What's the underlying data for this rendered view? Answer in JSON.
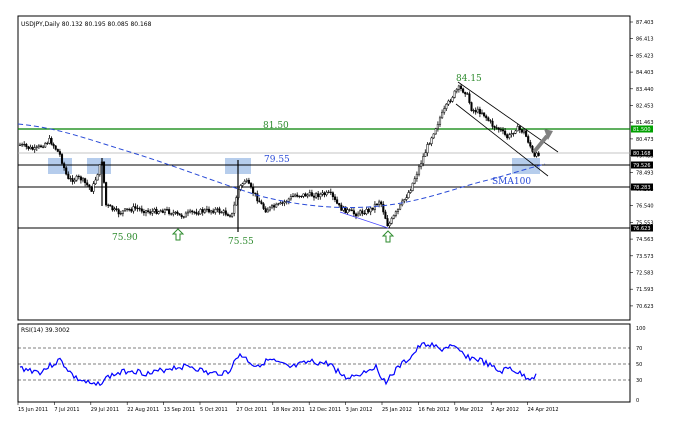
{
  "main_panel": {
    "header": "USDJPY,Daily  80.132 80.195 80.085 80.168",
    "price_ticks": [
      "87.403",
      "86.413",
      "85.423",
      "84.403",
      "83.440",
      "82.453",
      "81.463",
      "80.473",
      "79.483",
      "78.493",
      "77.503",
      "76.540",
      "75.553",
      "74.563",
      "73.573",
      "72.583",
      "71.593",
      "70.623"
    ],
    "price_tags": [
      {
        "id": "tag-8150",
        "text": "81.500",
        "bg": "#00a000",
        "fg": "#ffffff"
      },
      {
        "id": "tag-8016",
        "text": "80.168",
        "bg": "#000000",
        "fg": "#ffffff"
      },
      {
        "id": "tag-7955",
        "text": "79.526",
        "bg": "#000000",
        "fg": "#ffffff"
      },
      {
        "id": "tag-7828",
        "text": "78.283",
        "bg": "#000000",
        "fg": "#ffffff"
      },
      {
        "id": "tag-7610",
        "text": "76.623",
        "bg": "#000000",
        "fg": "#ffffff"
      }
    ],
    "annotations": {
      "high": "84.15",
      "resistance": "81.50",
      "mid_level": "79.55",
      "sma": "SMA100",
      "low1": "75.90",
      "low2": "75.55"
    }
  },
  "rsi_panel": {
    "header": "RSI(14) 39.3002",
    "ticks": [
      "100",
      "70",
      "50",
      "30",
      "0"
    ]
  },
  "x_axis": {
    "dates": [
      "15 Jun 2011",
      "7 Jul 2011",
      "29 Jul 2011",
      "22 Aug 2011",
      "13 Sep 2011",
      "5 Oct 2011",
      "27 Oct 2011",
      "18 Nov 2011",
      "12 Dec 2011",
      "3 Jan 2012",
      "25 Jan 2012",
      "16 Feb 2012",
      "9 Mar 2012",
      "2 Apr 2012",
      "24 Apr 2012"
    ]
  },
  "colors": {
    "candles": "#000000",
    "resistance_line": "#008000",
    "support_line": "#000000",
    "sma_line": "#2a4bd7",
    "rsi_line": "#0000ff",
    "annotation_green": "#2e8b2e",
    "annotation_blue": "#2a4bd7",
    "highlight_box": "#a9c4e9",
    "channel_arrow": "#808080"
  }
}
